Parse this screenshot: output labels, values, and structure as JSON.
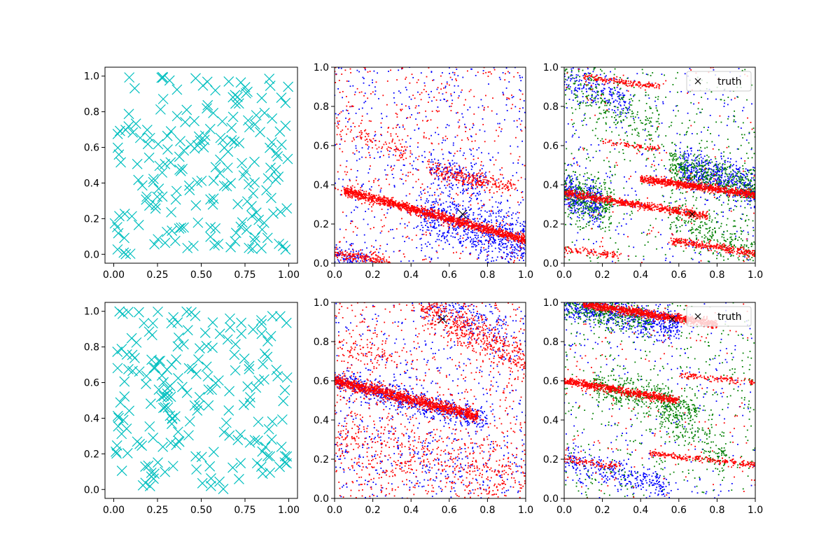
{
  "figure": {
    "title": "",
    "grid": "2x3 subplots"
  },
  "chart_data": [
    {
      "id": "top-left",
      "type": "scatter",
      "title": "",
      "xlabel": "",
      "ylabel": "",
      "xlim": [
        -0.05,
        1.05
      ],
      "ylim": [
        -0.05,
        1.05
      ],
      "xticks": [
        "0.00",
        "0.25",
        "0.50",
        "0.75",
        "1.00"
      ],
      "xtick_values": [
        0,
        0.25,
        0.5,
        0.75,
        1.0
      ],
      "yticks": [
        "0.0",
        "0.2",
        "0.4",
        "0.6",
        "0.8",
        "1.0"
      ],
      "ytick_values": [
        0,
        0.2,
        0.4,
        0.6,
        0.8,
        1.0
      ],
      "marker": "x",
      "color": "#00bfbf",
      "series": [
        {
          "name": "samples",
          "count": 200,
          "distribution": "uniform",
          "seed": 11
        }
      ],
      "legend": null
    },
    {
      "id": "top-middle",
      "type": "scatter",
      "title": "",
      "xlim": [
        0,
        1
      ],
      "ylim": [
        0,
        1
      ],
      "xticks": [
        "0.0",
        "0.2",
        "0.4",
        "0.6",
        "0.8",
        "1.0"
      ],
      "xtick_values": [
        0,
        0.2,
        0.4,
        0.6,
        0.8,
        1.0
      ],
      "yticks": [
        "0.0",
        "0.2",
        "0.4",
        "0.6",
        "0.8",
        "1.0"
      ],
      "ytick_values": [
        0,
        0.2,
        0.4,
        0.6,
        0.8,
        1.0
      ],
      "series": [
        {
          "name": "blue",
          "color": "#0000ff",
          "bands": [
            {
              "x0": 0.45,
              "x1": 1.0,
              "y0": 0.26,
              "y1": 0.1,
              "spread": 0.07,
              "n": 700
            },
            {
              "x0": 0.5,
              "x1": 0.8,
              "y0": 0.48,
              "y1": 0.4,
              "spread": 0.05,
              "n": 150
            },
            {
              "x0": 0.0,
              "x1": 0.2,
              "y0": 0.04,
              "y1": 0.0,
              "spread": 0.03,
              "n": 120
            }
          ],
          "noise": 500,
          "seed": 21
        },
        {
          "name": "red",
          "color": "#ff0000",
          "bands": [
            {
              "x0": 0.05,
              "x1": 1.0,
              "y0": 0.37,
              "y1": 0.12,
              "spread": 0.012,
              "n": 1400
            },
            {
              "x0": 0.48,
              "x1": 0.95,
              "y0": 0.48,
              "y1": 0.38,
              "spread": 0.02,
              "n": 250
            },
            {
              "x0": 0.0,
              "x1": 0.3,
              "y0": 0.05,
              "y1": 0.0,
              "spread": 0.015,
              "n": 180
            },
            {
              "x0": 0.0,
              "x1": 0.4,
              "y0": 0.7,
              "y1": 0.55,
              "spread": 0.03,
              "n": 100
            }
          ],
          "noise": 500,
          "seed": 22
        }
      ],
      "truth": {
        "x": 0.67,
        "y": 0.25,
        "label": "",
        "marker_size": "large"
      },
      "legend": null
    },
    {
      "id": "top-right",
      "type": "scatter",
      "title": "",
      "xlim": [
        0,
        1
      ],
      "ylim": [
        0,
        1
      ],
      "xticks": [
        "0.0",
        "0.2",
        "0.4",
        "0.6",
        "0.8",
        "1.0"
      ],
      "xtick_values": [
        0,
        0.2,
        0.4,
        0.6,
        0.8,
        1.0
      ],
      "yticks": [
        "0.0",
        "0.2",
        "0.4",
        "0.6",
        "0.8",
        "1.0"
      ],
      "ytick_values": [
        0,
        0.2,
        0.4,
        0.6,
        0.8,
        1.0
      ],
      "series": [
        {
          "name": "blue",
          "color": "#0000ff",
          "bands": [
            {
              "x0": 0.6,
              "x1": 1.0,
              "y0": 0.5,
              "y1": 0.38,
              "spread": 0.05,
              "n": 500
            },
            {
              "x0": 0.0,
              "x1": 0.2,
              "y0": 0.36,
              "y1": 0.3,
              "spread": 0.05,
              "n": 350
            },
            {
              "x0": 0.0,
              "x1": 0.35,
              "y0": 0.96,
              "y1": 0.8,
              "spread": 0.05,
              "n": 200
            }
          ],
          "noise": 300,
          "seed": 31
        },
        {
          "name": "green",
          "color": "#008000",
          "bands": [
            {
              "x0": 0.55,
              "x1": 1.0,
              "y0": 0.5,
              "y1": 0.38,
              "spread": 0.05,
              "n": 450
            },
            {
              "x0": 0.0,
              "x1": 0.25,
              "y0": 0.36,
              "y1": 0.28,
              "spread": 0.06,
              "n": 300
            },
            {
              "x0": 0.55,
              "x1": 1.0,
              "y0": 0.25,
              "y1": 0.05,
              "spread": 0.06,
              "n": 250
            },
            {
              "x0": 0.0,
              "x1": 0.5,
              "y0": 0.95,
              "y1": 0.65,
              "spread": 0.08,
              "n": 250
            }
          ],
          "noise": 400,
          "seed": 32
        },
        {
          "name": "red",
          "color": "#ff0000",
          "bands": [
            {
              "x0": 0.0,
              "x1": 0.75,
              "y0": 0.36,
              "y1": 0.24,
              "spread": 0.01,
              "n": 700
            },
            {
              "x0": 0.4,
              "x1": 1.0,
              "y0": 0.43,
              "y1": 0.35,
              "spread": 0.01,
              "n": 800
            },
            {
              "x0": 0.55,
              "x1": 1.0,
              "y0": 0.12,
              "y1": 0.05,
              "spread": 0.01,
              "n": 300
            },
            {
              "x0": 0.0,
              "x1": 0.3,
              "y0": 0.07,
              "y1": 0.04,
              "spread": 0.01,
              "n": 100
            },
            {
              "x0": 0.1,
              "x1": 0.5,
              "y0": 0.95,
              "y1": 0.9,
              "spread": 0.008,
              "n": 160
            },
            {
              "x0": 0.2,
              "x1": 0.5,
              "y0": 0.62,
              "y1": 0.58,
              "spread": 0.008,
              "n": 80
            }
          ],
          "noise": 120,
          "seed": 33
        }
      ],
      "truth": {
        "x": 0.67,
        "y": 0.25,
        "label": "truth",
        "marker_size": "small"
      },
      "legend": {
        "placement": "top-right",
        "entries": [
          "truth"
        ]
      }
    },
    {
      "id": "bottom-left",
      "type": "scatter",
      "title": "",
      "xlim": [
        -0.05,
        1.05
      ],
      "ylim": [
        -0.05,
        1.05
      ],
      "xticks": [
        "0.00",
        "0.25",
        "0.50",
        "0.75",
        "1.00"
      ],
      "xtick_values": [
        0,
        0.25,
        0.5,
        0.75,
        1.0
      ],
      "yticks": [
        "0.0",
        "0.2",
        "0.4",
        "0.6",
        "0.8",
        "1.0"
      ],
      "ytick_values": [
        0,
        0.2,
        0.4,
        0.6,
        0.8,
        1.0
      ],
      "marker": "x",
      "color": "#00bfbf",
      "series": [
        {
          "name": "samples",
          "count": 200,
          "distribution": "uniform",
          "seed": 41
        }
      ],
      "legend": null
    },
    {
      "id": "bottom-middle",
      "type": "scatter",
      "title": "",
      "xlim": [
        0,
        1
      ],
      "ylim": [
        0,
        1
      ],
      "xticks": [
        "0.0",
        "0.2",
        "0.4",
        "0.6",
        "0.8",
        "1.0"
      ],
      "xtick_values": [
        0,
        0.2,
        0.4,
        0.6,
        0.8,
        1.0
      ],
      "yticks": [
        "0.0",
        "0.2",
        "0.4",
        "0.6",
        "0.8",
        "1.0"
      ],
      "ytick_values": [
        0,
        0.2,
        0.4,
        0.6,
        0.8,
        1.0
      ],
      "series": [
        {
          "name": "blue",
          "color": "#0000ff",
          "bands": [
            {
              "x0": 0.0,
              "x1": 0.8,
              "y0": 0.6,
              "y1": 0.4,
              "spread": 0.03,
              "n": 600
            },
            {
              "x0": 0.45,
              "x1": 0.9,
              "y0": 1.0,
              "y1": 0.85,
              "spread": 0.05,
              "n": 150
            },
            {
              "x0": 0.0,
              "x1": 1.0,
              "y0": 0.3,
              "y1": 0.15,
              "spread": 0.1,
              "n": 150
            }
          ],
          "noise": 500,
          "seed": 51
        },
        {
          "name": "red",
          "color": "#ff0000",
          "bands": [
            {
              "x0": 0.0,
              "x1": 0.75,
              "y0": 0.6,
              "y1": 0.42,
              "spread": 0.015,
              "n": 1300
            },
            {
              "x0": 0.45,
              "x1": 1.0,
              "y0": 1.0,
              "y1": 0.7,
              "spread": 0.05,
              "n": 500
            },
            {
              "x0": 0.0,
              "x1": 1.0,
              "y0": 0.3,
              "y1": 0.1,
              "spread": 0.08,
              "n": 400
            },
            {
              "x0": 0.0,
              "x1": 0.3,
              "y0": 0.78,
              "y1": 0.72,
              "spread": 0.03,
              "n": 80
            }
          ],
          "noise": 700,
          "seed": 52
        }
      ],
      "truth": {
        "x": 0.565,
        "y": 0.915,
        "label": "",
        "marker_size": "large"
      },
      "legend": null
    },
    {
      "id": "bottom-right",
      "type": "scatter",
      "title": "",
      "xlim": [
        0,
        1
      ],
      "ylim": [
        0,
        1
      ],
      "xticks": [
        "0.0",
        "0.2",
        "0.4",
        "0.6",
        "0.8",
        "1.0"
      ],
      "xtick_values": [
        0,
        0.2,
        0.4,
        0.6,
        0.8,
        1.0
      ],
      "yticks": [
        "0.0",
        "0.2",
        "0.4",
        "0.6",
        "0.8",
        "1.0"
      ],
      "ytick_values": [
        0,
        0.2,
        0.4,
        0.6,
        0.8,
        1.0
      ],
      "series": [
        {
          "name": "blue",
          "color": "#0000ff",
          "bands": [
            {
              "x0": 0.0,
              "x1": 0.6,
              "y0": 0.99,
              "y1": 0.88,
              "spread": 0.04,
              "n": 600
            },
            {
              "x0": 0.0,
              "x1": 0.55,
              "y0": 0.2,
              "y1": 0.05,
              "spread": 0.04,
              "n": 300
            }
          ],
          "noise": 250,
          "seed": 61
        },
        {
          "name": "green",
          "color": "#008000",
          "bands": [
            {
              "x0": 0.0,
              "x1": 0.45,
              "y0": 1.0,
              "y1": 0.9,
              "spread": 0.04,
              "n": 350
            },
            {
              "x0": 0.15,
              "x1": 0.7,
              "y0": 0.58,
              "y1": 0.45,
              "spread": 0.04,
              "n": 400
            },
            {
              "x0": 0.5,
              "x1": 0.85,
              "y0": 0.45,
              "y1": 0.2,
              "spread": 0.06,
              "n": 200
            }
          ],
          "noise": 450,
          "seed": 62
        },
        {
          "name": "red",
          "color": "#ff0000",
          "bands": [
            {
              "x0": 0.1,
              "x1": 0.8,
              "y0": 0.99,
              "y1": 0.89,
              "spread": 0.01,
              "n": 1000
            },
            {
              "x0": 0.0,
              "x1": 0.6,
              "y0": 0.6,
              "y1": 0.5,
              "spread": 0.01,
              "n": 700
            },
            {
              "x0": 0.45,
              "x1": 1.0,
              "y0": 0.23,
              "y1": 0.17,
              "spread": 0.008,
              "n": 250
            },
            {
              "x0": 0.6,
              "x1": 1.0,
              "y0": 0.63,
              "y1": 0.59,
              "spread": 0.008,
              "n": 120
            },
            {
              "x0": 0.0,
              "x1": 0.3,
              "y0": 0.2,
              "y1": 0.16,
              "spread": 0.01,
              "n": 100
            }
          ],
          "noise": 150,
          "seed": 63
        }
      ],
      "truth": {
        "x": 0.565,
        "y": 0.915,
        "label": "truth",
        "marker_size": "small"
      },
      "legend": {
        "placement": "top-right",
        "entries": [
          "truth"
        ]
      }
    }
  ]
}
